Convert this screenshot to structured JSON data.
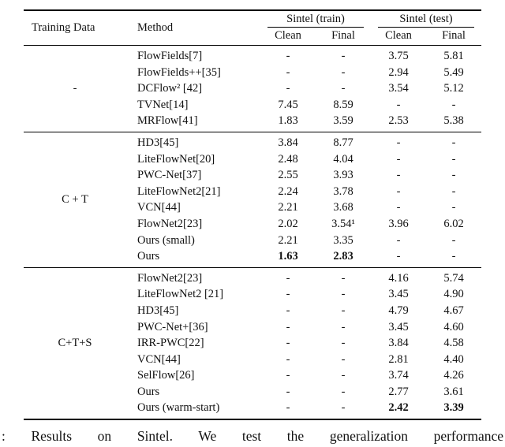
{
  "table": {
    "headers": {
      "training_data": "Training Data",
      "method": "Method",
      "sintel_train": "Sintel (train)",
      "sintel_test": "Sintel (test)",
      "sub": [
        "Clean",
        "Final",
        "Clean",
        "Final"
      ]
    },
    "groups": [
      {
        "training_data": "-",
        "rows": [
          {
            "method": "FlowFields[7]",
            "train_clean": "-",
            "train_final": "-",
            "test_clean": "3.75",
            "test_final": "5.81"
          },
          {
            "method": "FlowFields++[35]",
            "train_clean": "-",
            "train_final": "-",
            "test_clean": "2.94",
            "test_final": "5.49"
          },
          {
            "method": "DCFlow² [42]",
            "train_clean": "-",
            "train_final": "-",
            "test_clean": "3.54",
            "test_final": "5.12"
          },
          {
            "method": "TVNet[14]",
            "train_clean": "7.45",
            "train_final": "8.59",
            "test_clean": "-",
            "test_final": "-"
          },
          {
            "method": "MRFlow[41]",
            "train_clean": "1.83",
            "train_final": "3.59",
            "test_clean": "2.53",
            "test_final": "5.38"
          }
        ]
      },
      {
        "training_data": "C + T",
        "rows": [
          {
            "method": "HD3[45]",
            "train_clean": "3.84",
            "train_final": "8.77",
            "test_clean": "-",
            "test_final": "-"
          },
          {
            "method": "LiteFlowNet[20]",
            "train_clean": "2.48",
            "train_final": "4.04",
            "test_clean": "-",
            "test_final": "-"
          },
          {
            "method": "PWC-Net[37]",
            "train_clean": "2.55",
            "train_final": "3.93",
            "test_clean": "-",
            "test_final": "-"
          },
          {
            "method": "LiteFlowNet2[21]",
            "train_clean": "2.24",
            "train_final": "3.78",
            "test_clean": "-",
            "test_final": "-"
          },
          {
            "method": "VCN[44]",
            "train_clean": "2.21",
            "train_final": "3.68",
            "test_clean": "-",
            "test_final": "-"
          },
          {
            "method": "FlowNet2[23]",
            "train_clean": "2.02",
            "train_final": "3.54¹",
            "test_clean": "3.96",
            "test_final": "6.02"
          },
          {
            "method": "Ours (small)",
            "train_clean": "2.21",
            "train_final": "3.35",
            "test_clean": "-",
            "test_final": "-"
          },
          {
            "method": "Ours",
            "train_clean": "1.63",
            "train_final": "2.83",
            "test_clean": "-",
            "test_final": "-",
            "bold": [
              "train_clean",
              "train_final"
            ]
          }
        ]
      },
      {
        "training_data": "C+T+S",
        "rows": [
          {
            "method": "FlowNet2[23]",
            "train_clean": "-",
            "train_final": "-",
            "test_clean": "4.16",
            "test_final": "5.74"
          },
          {
            "method": "LiteFlowNet2 [21]",
            "train_clean": "-",
            "train_final": "-",
            "test_clean": "3.45",
            "test_final": "4.90"
          },
          {
            "method": "HD3[45]",
            "train_clean": "-",
            "train_final": "-",
            "test_clean": "4.79",
            "test_final": "4.67"
          },
          {
            "method": "PWC-Net+[36]",
            "train_clean": "-",
            "train_final": "-",
            "test_clean": "3.45",
            "test_final": "4.60"
          },
          {
            "method": "IRR-PWC[22]",
            "train_clean": "-",
            "train_final": "-",
            "test_clean": "3.84",
            "test_final": "4.58"
          },
          {
            "method": "VCN[44]",
            "train_clean": "-",
            "train_final": "-",
            "test_clean": "2.81",
            "test_final": "4.40"
          },
          {
            "method": "SelFlow[26]",
            "train_clean": "-",
            "train_final": "-",
            "test_clean": "3.74",
            "test_final": "4.26"
          },
          {
            "method": "Ours",
            "train_clean": "-",
            "train_final": "-",
            "test_clean": "2.77",
            "test_final": "3.61"
          },
          {
            "method": "Ours (warm-start)",
            "train_clean": "-",
            "train_final": "-",
            "test_clean": "2.42",
            "test_final": "3.39",
            "bold": [
              "test_clean",
              "test_final"
            ]
          }
        ]
      }
    ]
  },
  "caption": ": Results on Sintel. We test the generalization performance"
}
